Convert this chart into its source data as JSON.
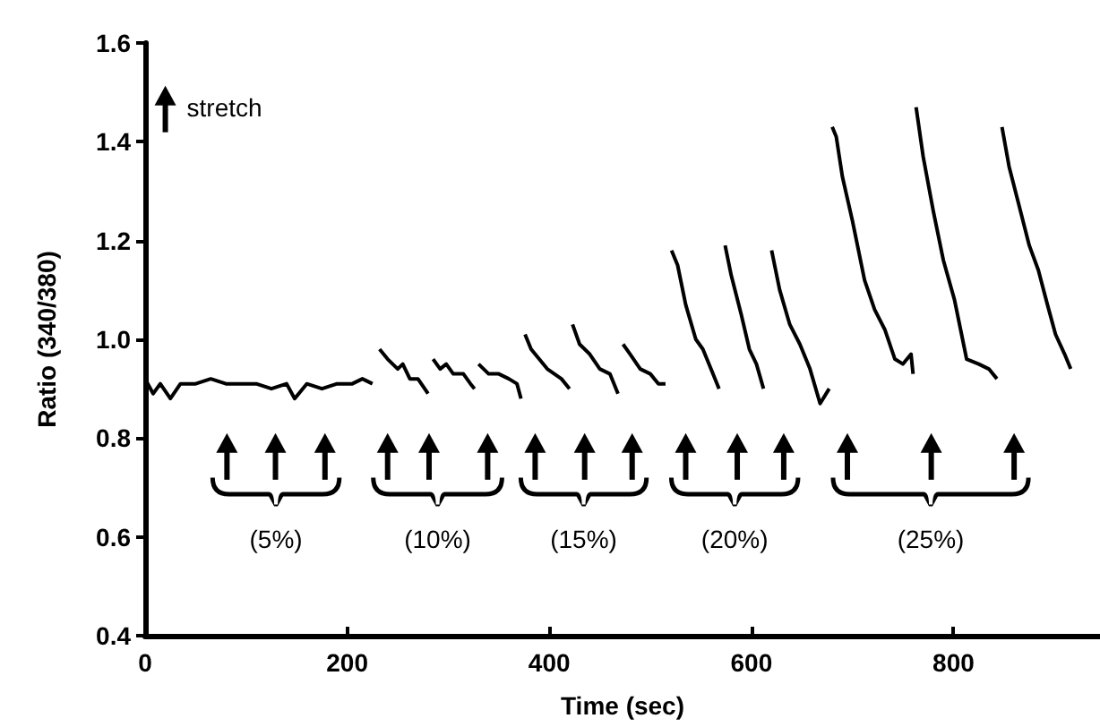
{
  "chart_data": {
    "type": "line",
    "xlabel": "Time (sec)",
    "ylabel": "Ratio (340/380)",
    "xlim": [
      0,
      945
    ],
    "xticks": [
      0,
      200,
      400,
      600,
      800
    ],
    "ylim": [
      0.4,
      1.6
    ],
    "yticks": [
      0.4,
      0.6,
      0.8,
      {
        "value": 1,
        "label": "1.0"
      },
      1.2,
      1.4,
      1.6
    ],
    "grid": false,
    "marker": "none",
    "line_style": "solid",
    "annotations": [
      "stretch",
      "(5%)",
      "(10%)",
      "(15%)",
      "(20%)",
      "(25%)"
    ],
    "series": [
      {
        "color": "#000000",
        "x": [
          0,
          8,
          15,
          25,
          35,
          50,
          65,
          80,
          95,
          110,
          125,
          140,
          148,
          160,
          175,
          190,
          205,
          215,
          225,
          228,
          232,
          240,
          250,
          255,
          262,
          270,
          280,
          283,
          285,
          292,
          298,
          305,
          315,
          322,
          326,
          328,
          330,
          340,
          350,
          360,
          368,
          372,
          374,
          376,
          382,
          390,
          398,
          405,
          412,
          420,
          421,
          423,
          430,
          440,
          450,
          460,
          468,
          470,
          473,
          480,
          490,
          500,
          508,
          515,
          518,
          521,
          527,
          535,
          545,
          552,
          560,
          568,
          571,
          574,
          580,
          590,
          598,
          605,
          612,
          616,
          620,
          628,
          638,
          648,
          658,
          668,
          677,
          678,
          680,
          684,
          690,
          700,
          712,
          722,
          732,
          742,
          750,
          758,
          760,
          761,
          763,
          770,
          780,
          790,
          801,
          808,
          813,
          825,
          835,
          843,
          845,
          848,
          855,
          865,
          875,
          884,
          893,
          901,
          910,
          916
        ],
        "values": [
          0.92,
          0.89,
          0.91,
          0.88,
          0.91,
          0.91,
          0.92,
          0.91,
          0.91,
          0.91,
          0.9,
          0.91,
          0.88,
          0.91,
          0.9,
          0.91,
          0.91,
          0.92,
          0.91,
          null,
          0.98,
          0.96,
          0.94,
          0.95,
          0.92,
          0.92,
          0.89,
          null,
          0.96,
          0.94,
          0.95,
          0.93,
          0.93,
          0.91,
          0.9,
          null,
          0.95,
          0.93,
          0.93,
          0.92,
          0.91,
          0.88,
          null,
          1.01,
          0.98,
          0.96,
          0.94,
          0.93,
          0.92,
          0.9,
          null,
          1.03,
          0.99,
          0.97,
          0.94,
          0.93,
          0.89,
          null,
          0.99,
          0.97,
          0.94,
          0.93,
          0.91,
          0.91,
          null,
          1.18,
          1.15,
          1.07,
          1.0,
          0.98,
          0.94,
          0.9,
          null,
          1.19,
          1.13,
          1.05,
          0.98,
          0.95,
          0.9,
          null,
          1.18,
          1.1,
          1.03,
          0.99,
          0.94,
          0.87,
          0.9,
          null,
          1.43,
          1.41,
          1.33,
          1.24,
          1.12,
          1.06,
          1.02,
          0.96,
          0.95,
          0.97,
          0.93,
          null,
          1.47,
          1.37,
          1.26,
          1.16,
          1.08,
          1.01,
          0.96,
          0.95,
          0.94,
          0.92,
          null,
          1.43,
          1.35,
          1.27,
          1.19,
          1.14,
          1.07,
          1.01,
          0.97,
          0.94
        ]
      }
    ]
  }
}
